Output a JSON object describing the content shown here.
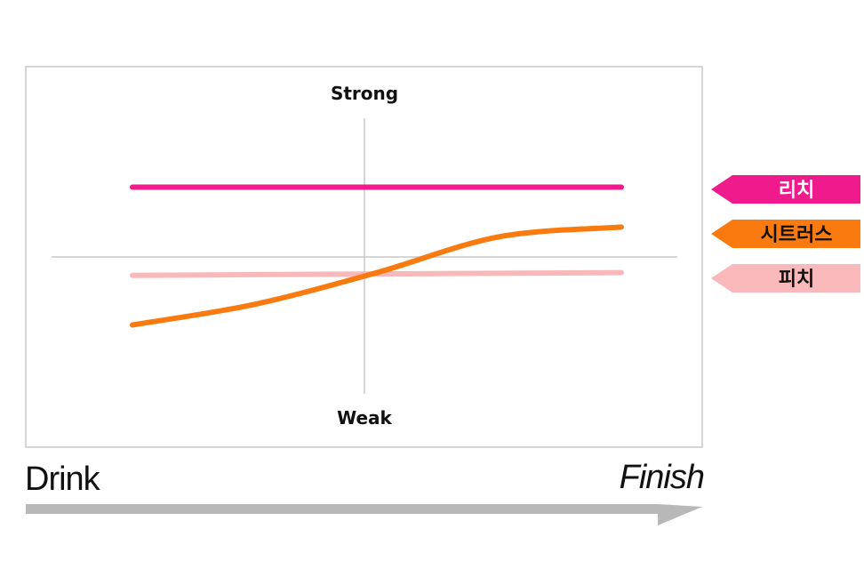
{
  "chart_data": {
    "type": "line",
    "y_top_label": "Strong",
    "y_bottom_label": "Weak",
    "x_start_label": "Drink",
    "x_end_label": "Finish",
    "x": [
      0,
      0.25,
      0.5,
      0.75,
      1
    ],
    "ylim": [
      -1,
      1
    ],
    "series": [
      {
        "name": "리치",
        "color": "#ef1a8c",
        "text_color": "#ffffff",
        "values": [
          0.5,
          0.5,
          0.5,
          0.5,
          0.5
        ]
      },
      {
        "name": "시트러스",
        "color": "#f97b0f",
        "text_color": "#111111",
        "values": [
          -0.5,
          -0.35,
          -0.12,
          0.14,
          0.21
        ]
      },
      {
        "name": "피치",
        "color": "#f9b9bb",
        "text_color": "#111111",
        "values": [
          -0.14,
          -0.135,
          -0.13,
          -0.125,
          -0.12
        ]
      }
    ],
    "grid": false,
    "legend_position": "right"
  },
  "colors": {
    "frame_border": "#c8c8c8",
    "crosshair": "#c8c8c8",
    "arrow": "#b8b8b8"
  }
}
